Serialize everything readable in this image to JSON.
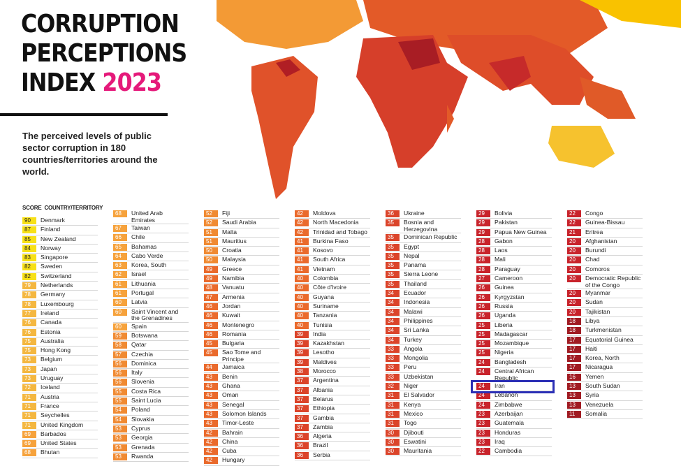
{
  "header": {
    "title_lines": [
      "CORRUPTION",
      "PERCEPTIONS",
      "INDEX"
    ],
    "title_year": "2023",
    "subtitle": "The perceived levels of public sector corruption in 180 countries/territories around the world."
  },
  "table": {
    "score_header": "SCORE",
    "country_header": "COUNTRY/TERRITORY",
    "columns": [
      [
        {
          "score": 90,
          "country": "Denmark"
        },
        {
          "score": 87,
          "country": "Finland"
        },
        {
          "score": 85,
          "country": "New Zealand"
        },
        {
          "score": 84,
          "country": "Norway"
        },
        {
          "score": 83,
          "country": "Singapore"
        },
        {
          "score": 82,
          "country": "Sweden"
        },
        {
          "score": 82,
          "country": "Switzerland"
        },
        {
          "score": 79,
          "country": "Netherlands"
        },
        {
          "score": 78,
          "country": "Germany"
        },
        {
          "score": 78,
          "country": "Luxembourg"
        },
        {
          "score": 77,
          "country": "Ireland"
        },
        {
          "score": 76,
          "country": "Canada"
        },
        {
          "score": 76,
          "country": "Estonia"
        },
        {
          "score": 75,
          "country": "Australia"
        },
        {
          "score": 75,
          "country": "Hong Kong"
        },
        {
          "score": 73,
          "country": "Belgium"
        },
        {
          "score": 73,
          "country": "Japan"
        },
        {
          "score": 73,
          "country": "Uruguay"
        },
        {
          "score": 72,
          "country": "Iceland"
        },
        {
          "score": 71,
          "country": "Austria"
        },
        {
          "score": 71,
          "country": "France"
        },
        {
          "score": 71,
          "country": "Seychelles"
        },
        {
          "score": 71,
          "country": "United Kingdom"
        },
        {
          "score": 69,
          "country": "Barbados"
        },
        {
          "score": 69,
          "country": "United States"
        },
        {
          "score": 68,
          "country": "Bhutan"
        }
      ],
      [
        {
          "score": 68,
          "country": "United Arab Emirates"
        },
        {
          "score": 67,
          "country": "Taiwan"
        },
        {
          "score": 66,
          "country": "Chile"
        },
        {
          "score": 65,
          "country": "Bahamas"
        },
        {
          "score": 64,
          "country": "Cabo Verde"
        },
        {
          "score": 63,
          "country": "Korea, South"
        },
        {
          "score": 62,
          "country": "Israel"
        },
        {
          "score": 61,
          "country": "Lithuania"
        },
        {
          "score": 61,
          "country": "Portugal"
        },
        {
          "score": 60,
          "country": "Latvia"
        },
        {
          "score": 60,
          "country": "Saint Vincent and the Grenadines"
        },
        {
          "score": 60,
          "country": "Spain"
        },
        {
          "score": 59,
          "country": "Botswana"
        },
        {
          "score": 58,
          "country": "Qatar"
        },
        {
          "score": 57,
          "country": "Czechia"
        },
        {
          "score": 56,
          "country": "Dominica"
        },
        {
          "score": 56,
          "country": "Italy"
        },
        {
          "score": 56,
          "country": "Slovenia"
        },
        {
          "score": 55,
          "country": "Costa Rica"
        },
        {
          "score": 55,
          "country": "Saint Lucia"
        },
        {
          "score": 54,
          "country": "Poland"
        },
        {
          "score": 54,
          "country": "Slovakia"
        },
        {
          "score": 53,
          "country": "Cyprus"
        },
        {
          "score": 53,
          "country": "Georgia"
        },
        {
          "score": 53,
          "country": "Grenada"
        },
        {
          "score": 53,
          "country": "Rwanda"
        }
      ],
      [
        {
          "score": 52,
          "country": "Fiji"
        },
        {
          "score": 52,
          "country": "Saudi Arabia"
        },
        {
          "score": 51,
          "country": "Malta"
        },
        {
          "score": 51,
          "country": "Mauritius"
        },
        {
          "score": 50,
          "country": "Croatia"
        },
        {
          "score": 50,
          "country": "Malaysia"
        },
        {
          "score": 49,
          "country": "Greece"
        },
        {
          "score": 49,
          "country": "Namibia"
        },
        {
          "score": 48,
          "country": "Vanuatu"
        },
        {
          "score": 47,
          "country": "Armenia"
        },
        {
          "score": 46,
          "country": "Jordan"
        },
        {
          "score": 46,
          "country": "Kuwait"
        },
        {
          "score": 46,
          "country": "Montenegro"
        },
        {
          "score": 46,
          "country": "Romania"
        },
        {
          "score": 45,
          "country": "Bulgaria"
        },
        {
          "score": 45,
          "country": "Sao Tome and Principe"
        },
        {
          "score": 44,
          "country": "Jamaica"
        },
        {
          "score": 43,
          "country": "Benin"
        },
        {
          "score": 43,
          "country": "Ghana"
        },
        {
          "score": 43,
          "country": "Oman"
        },
        {
          "score": 43,
          "country": "Senegal"
        },
        {
          "score": 43,
          "country": "Solomon Islands"
        },
        {
          "score": 43,
          "country": "Timor-Leste"
        },
        {
          "score": 42,
          "country": "Bahrain"
        },
        {
          "score": 42,
          "country": "China"
        },
        {
          "score": 42,
          "country": "Cuba"
        },
        {
          "score": 42,
          "country": "Hungary"
        }
      ],
      [
        {
          "score": 42,
          "country": "Moldova"
        },
        {
          "score": 42,
          "country": "North Macedonia"
        },
        {
          "score": 42,
          "country": "Trinidad and Tobago"
        },
        {
          "score": 41,
          "country": "Burkina Faso"
        },
        {
          "score": 41,
          "country": "Kosovo"
        },
        {
          "score": 41,
          "country": "South Africa"
        },
        {
          "score": 41,
          "country": "Vietnam"
        },
        {
          "score": 40,
          "country": "Colombia"
        },
        {
          "score": 40,
          "country": "Côte d'Ivoire"
        },
        {
          "score": 40,
          "country": "Guyana"
        },
        {
          "score": 40,
          "country": "Suriname"
        },
        {
          "score": 40,
          "country": "Tanzania"
        },
        {
          "score": 40,
          "country": "Tunisia"
        },
        {
          "score": 39,
          "country": "India"
        },
        {
          "score": 39,
          "country": "Kazakhstan"
        },
        {
          "score": 39,
          "country": "Lesotho"
        },
        {
          "score": 39,
          "country": "Maldives"
        },
        {
          "score": 38,
          "country": "Morocco"
        },
        {
          "score": 37,
          "country": "Argentina"
        },
        {
          "score": 37,
          "country": "Albania"
        },
        {
          "score": 37,
          "country": "Belarus"
        },
        {
          "score": 37,
          "country": "Ethiopia"
        },
        {
          "score": 37,
          "country": "Gambia"
        },
        {
          "score": 37,
          "country": "Zambia"
        },
        {
          "score": 36,
          "country": "Algeria"
        },
        {
          "score": 36,
          "country": "Brazil"
        },
        {
          "score": 36,
          "country": "Serbia"
        }
      ],
      [
        {
          "score": 36,
          "country": "Ukraine"
        },
        {
          "score": 35,
          "country": "Bosnia and Herzegovina"
        },
        {
          "score": 35,
          "country": "Dominican Republic"
        },
        {
          "score": 35,
          "country": "Egypt"
        },
        {
          "score": 35,
          "country": "Nepal"
        },
        {
          "score": 35,
          "country": "Panama"
        },
        {
          "score": 35,
          "country": "Sierra Leone"
        },
        {
          "score": 35,
          "country": "Thailand"
        },
        {
          "score": 34,
          "country": "Ecuador"
        },
        {
          "score": 34,
          "country": "Indonesia"
        },
        {
          "score": 34,
          "country": "Malawi"
        },
        {
          "score": 34,
          "country": "Philippines"
        },
        {
          "score": 34,
          "country": "Sri Lanka"
        },
        {
          "score": 34,
          "country": "Turkey"
        },
        {
          "score": 33,
          "country": "Angola"
        },
        {
          "score": 33,
          "country": "Mongolia"
        },
        {
          "score": 33,
          "country": "Peru"
        },
        {
          "score": 33,
          "country": "Uzbekistan"
        },
        {
          "score": 32,
          "country": "Niger"
        },
        {
          "score": 31,
          "country": "El Salvador"
        },
        {
          "score": 31,
          "country": "Kenya"
        },
        {
          "score": 31,
          "country": "Mexico"
        },
        {
          "score": 31,
          "country": "Togo"
        },
        {
          "score": 30,
          "country": "Djibouti"
        },
        {
          "score": 30,
          "country": "Eswatini"
        },
        {
          "score": 30,
          "country": "Mauritania"
        }
      ],
      [
        {
          "score": 29,
          "country": "Bolivia"
        },
        {
          "score": 29,
          "country": "Pakistan"
        },
        {
          "score": 29,
          "country": "Papua New Guinea"
        },
        {
          "score": 28,
          "country": "Gabon"
        },
        {
          "score": 28,
          "country": "Laos"
        },
        {
          "score": 28,
          "country": "Mali"
        },
        {
          "score": 28,
          "country": "Paraguay"
        },
        {
          "score": 27,
          "country": "Cameroon"
        },
        {
          "score": 26,
          "country": "Guinea"
        },
        {
          "score": 26,
          "country": "Kyrgyzstan"
        },
        {
          "score": 26,
          "country": "Russia"
        },
        {
          "score": 26,
          "country": "Uganda"
        },
        {
          "score": 25,
          "country": "Liberia"
        },
        {
          "score": 25,
          "country": "Madagascar"
        },
        {
          "score": 25,
          "country": "Mozambique"
        },
        {
          "score": 25,
          "country": "Nigeria"
        },
        {
          "score": 24,
          "country": "Bangladesh"
        },
        {
          "score": 24,
          "country": "Central African Republic"
        },
        {
          "score": 24,
          "country": "Iran"
        },
        {
          "score": 24,
          "country": "Lebanon"
        },
        {
          "score": 24,
          "country": "Zimbabwe"
        },
        {
          "score": 23,
          "country": "Azerbaijan"
        },
        {
          "score": 23,
          "country": "Guatemala"
        },
        {
          "score": 23,
          "country": "Honduras"
        },
        {
          "score": 23,
          "country": "Iraq"
        },
        {
          "score": 22,
          "country": "Cambodia"
        }
      ],
      [
        {
          "score": 22,
          "country": "Congo"
        },
        {
          "score": 22,
          "country": "Guinea-Bissau"
        },
        {
          "score": 21,
          "country": "Eritrea"
        },
        {
          "score": 20,
          "country": "Afghanistan"
        },
        {
          "score": 20,
          "country": "Burundi"
        },
        {
          "score": 20,
          "country": "Chad"
        },
        {
          "score": 20,
          "country": "Comoros"
        },
        {
          "score": 20,
          "country": "Democratic Republic of the Congo"
        },
        {
          "score": 20,
          "country": "Myanmar"
        },
        {
          "score": 20,
          "country": "Sudan"
        },
        {
          "score": 20,
          "country": "Tajikistan"
        },
        {
          "score": 18,
          "country": "Libya"
        },
        {
          "score": 18,
          "country": "Turkmenistan"
        },
        {
          "score": 17,
          "country": "Equatorial Guinea"
        },
        {
          "score": 17,
          "country": "Haiti"
        },
        {
          "score": 17,
          "country": "Korea, North"
        },
        {
          "score": 17,
          "country": "Nicaragua"
        },
        {
          "score": 16,
          "country": "Yemen"
        },
        {
          "score": 13,
          "country": "South Sudan"
        },
        {
          "score": 13,
          "country": "Syria"
        },
        {
          "score": 13,
          "country": "Venezuela"
        },
        {
          "score": 11,
          "country": "Somalia"
        }
      ]
    ]
  }
}
